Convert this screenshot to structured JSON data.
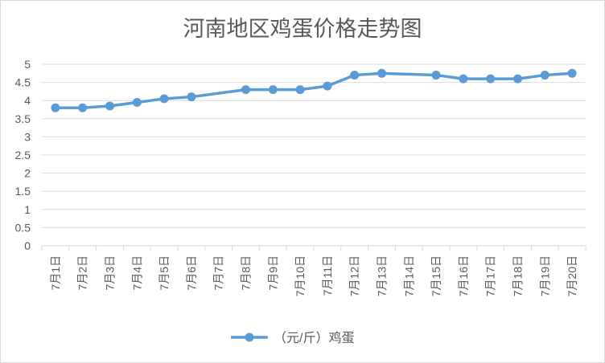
{
  "chart_data": {
    "type": "line",
    "title": "河南地区鸡蛋价格走势图",
    "xlabel": "",
    "ylabel": "",
    "categories": [
      "7月1日",
      "7月2日",
      "7月3日",
      "7月4日",
      "7月5日",
      "7月6日",
      "7月7日",
      "7月8日",
      "7月9日",
      "7月10日",
      "7月11日",
      "7月12日",
      "7月13日",
      "7月14日",
      "7月15日",
      "7月16日",
      "7月17日",
      "7月18日",
      "7月19日",
      "7月20日"
    ],
    "series": [
      {
        "name": "（元/斤）鸡蛋",
        "values": [
          3.8,
          3.8,
          3.85,
          3.95,
          4.05,
          4.1,
          null,
          4.3,
          4.3,
          4.3,
          4.4,
          4.7,
          4.75,
          null,
          4.7,
          4.6,
          4.6,
          4.6,
          4.7,
          4.75
        ],
        "color": "#5b9bd5"
      }
    ],
    "ylim": [
      0,
      5
    ],
    "yticks": [
      "0",
      "0.5",
      "1",
      "1.5",
      "2",
      "2.5",
      "3",
      "3.5",
      "4",
      "4.5",
      "5"
    ],
    "grid": true,
    "legend": "bottom"
  }
}
